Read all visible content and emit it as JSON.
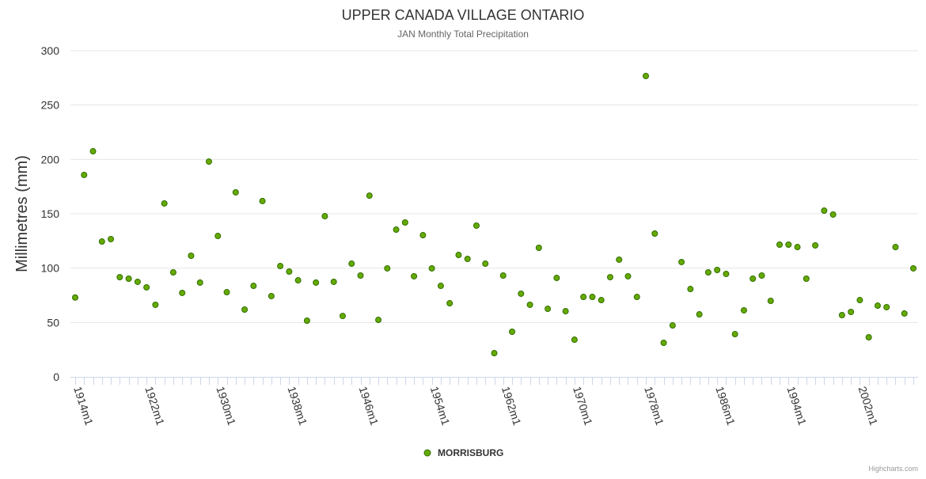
{
  "chart_data": {
    "type": "scatter",
    "title": "UPPER CANADA VILLAGE ONTARIO",
    "subtitle": "JAN Monthly Total Precipitation",
    "xlabel": "",
    "ylabel": "Millimetres (mm)",
    "ylim": [
      0,
      300
    ],
    "yticks": [
      0,
      50,
      100,
      150,
      200,
      250,
      300
    ],
    "x_tick_labels": [
      "1914m1",
      "1922m1",
      "1930m1",
      "1938m1",
      "1946m1",
      "1954m1",
      "1962m1",
      "1970m1",
      "1978m1",
      "1986m1",
      "1994m1",
      "2002m1"
    ],
    "grid": true,
    "legend_placement": "bottom-center",
    "series": [
      {
        "name": "MORRISBURG",
        "color": "#66aa00",
        "start_year": 1914,
        "values": [
          73,
          185.7,
          207.5,
          124.5,
          126.7,
          91.7,
          90.3,
          87.4,
          82.3,
          66.3,
          159.5,
          96.1,
          77.2,
          111.4,
          86.7,
          198,
          129.6,
          77.9,
          169.7,
          61.9,
          83.7,
          161.7,
          74.3,
          101.9,
          96.8,
          88.8,
          51.7,
          86.7,
          147.8,
          87.4,
          56,
          104.1,
          93.2,
          166.7,
          52.4,
          99.8,
          135.4,
          142,
          92.5,
          130.3,
          99.8,
          83.7,
          67.7,
          112.1,
          108.5,
          139.1,
          104.1,
          21.8,
          93.2,
          41.5,
          76.5,
          66.3,
          118.7,
          62.6,
          91,
          60.4,
          34.2,
          73.5,
          73.5,
          70.6,
          91.7,
          107.8,
          92.5,
          73.5,
          276.7,
          131.8,
          31.3,
          47.3,
          105.6,
          80.8,
          57.5,
          96.1,
          98.3,
          94.7,
          39.3,
          61.2,
          90.3,
          93.2,
          69.9,
          121.6,
          121.6,
          119.4,
          90.3,
          120.9,
          152.9,
          149.3,
          56.8,
          59.7,
          70.6,
          36.4,
          65.5,
          64.1,
          119.4,
          58.3,
          99.8
        ]
      }
    ],
    "credits": "Highcharts.com"
  }
}
